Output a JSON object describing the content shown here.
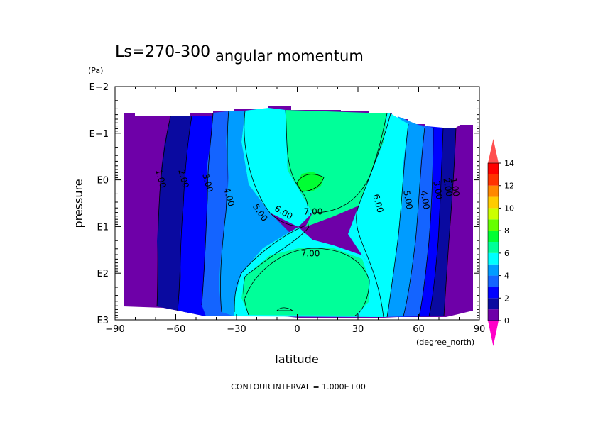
{
  "chart_data": {
    "type": "contour",
    "title": "angular momentum",
    "subtitle": "Ls=270-300",
    "xlabel": "latitude",
    "x_unit": "(degree_north)",
    "ylabel": "pressure",
    "y_unit": "(Pa)",
    "x_ticks": [
      "−90",
      "−60",
      "−30",
      "0",
      "30",
      "60",
      "90"
    ],
    "x_tick_values": [
      -90,
      -60,
      -30,
      0,
      30,
      60,
      90
    ],
    "y_ticks": [
      "E−2",
      "E−1",
      "E0",
      "E1",
      "E2",
      "E3"
    ],
    "y_tick_exponents": [
      -2,
      -1,
      0,
      1,
      2,
      3
    ],
    "xlim": [
      -90,
      90
    ],
    "y_scale": "log",
    "footer": "CONTOUR INTERVAL = 1.000E+00",
    "contour_interval": 1,
    "contour_labels": [
      "1.00",
      "2.00",
      "3.00",
      "4.00",
      "5.00",
      "6.00",
      "7.00",
      "7.00",
      "6.00",
      "5.00",
      "4.00",
      "3.00",
      "2.00",
      "1.00"
    ],
    "colorbar": {
      "ticks": [
        "0",
        "2",
        "4",
        "6",
        "8",
        "10",
        "12",
        "14"
      ],
      "colors": [
        "#ff00c8",
        "#6e00a8",
        "#0a0aa0",
        "#0000ff",
        "#1464ff",
        "#009cff",
        "#00ffff",
        "#00ff99",
        "#00ff33",
        "#66ff00",
        "#ccff00",
        "#ffcc00",
        "#ff8800",
        "#ff3300",
        "#ff0000",
        "#ff5050"
      ]
    }
  }
}
